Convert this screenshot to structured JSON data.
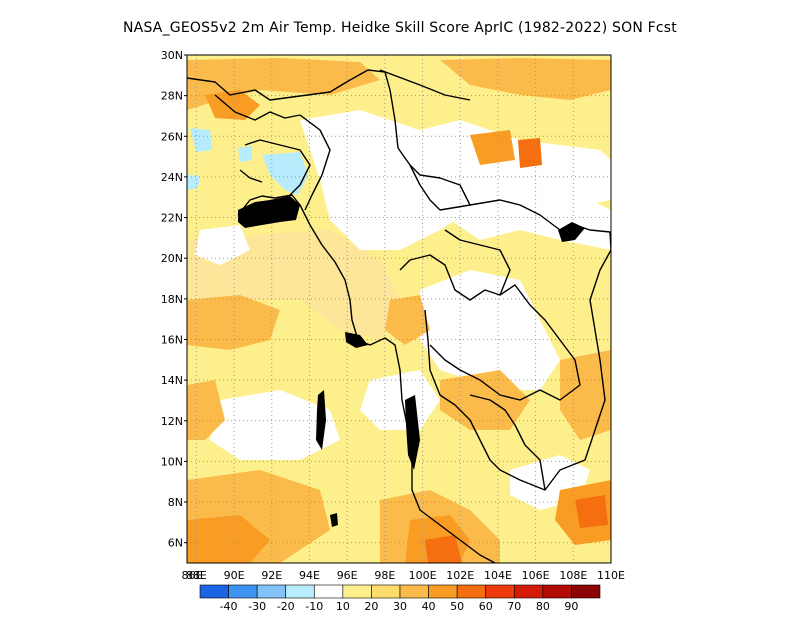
{
  "title": "NASA_GEOS5v2  2m Air Temp. Heidke Skill Score AprIC (1982-2022) SON Fcst",
  "map": {
    "lat_min": 5,
    "lat_max": 30,
    "lon_min": 87.5,
    "lon_max": 110,
    "lat_ticks": [
      {
        "value": 6,
        "label": "6N"
      },
      {
        "value": 8,
        "label": "8N"
      },
      {
        "value": 10,
        "label": "10N"
      },
      {
        "value": 12,
        "label": "12N"
      },
      {
        "value": 14,
        "label": "14N"
      },
      {
        "value": 16,
        "label": "16N"
      },
      {
        "value": 18,
        "label": "18N"
      },
      {
        "value": 20,
        "label": "20N"
      },
      {
        "value": 22,
        "label": "22N"
      },
      {
        "value": 24,
        "label": "24N"
      },
      {
        "value": 26,
        "label": "26N"
      },
      {
        "value": 28,
        "label": "28N"
      },
      {
        "value": 30,
        "label": "30N"
      }
    ],
    "lon_ticks": [
      {
        "value": 86,
        "label": "86E"
      },
      {
        "value": 88,
        "label": "88E"
      },
      {
        "value": 90,
        "label": "90E"
      },
      {
        "value": 92,
        "label": "92E"
      },
      {
        "value": 94,
        "label": "94E"
      },
      {
        "value": 96,
        "label": "96E"
      },
      {
        "value": 98,
        "label": "98E"
      },
      {
        "value": 100,
        "label": "100E"
      },
      {
        "value": 102,
        "label": "102E"
      },
      {
        "value": 104,
        "label": "104E"
      },
      {
        "value": 106,
        "label": "106E"
      },
      {
        "value": 108,
        "label": "108E"
      },
      {
        "value": 110,
        "label": "110E"
      }
    ]
  },
  "colorbar": {
    "colors": [
      "#1c64e6",
      "#3f93f0",
      "#82c3f7",
      "#b6ecfb",
      "#ffffff",
      "#fdf08c",
      "#fddc6c",
      "#fbbb4b",
      "#f99c23",
      "#f56f10",
      "#ec3a0d",
      "#d41b08",
      "#b20b06",
      "#8c0404"
    ],
    "labels": [
      "-40",
      "-30",
      "-20",
      "-10",
      "10",
      "20",
      "30",
      "40",
      "50",
      "60",
      "70",
      "80",
      "90"
    ]
  }
}
